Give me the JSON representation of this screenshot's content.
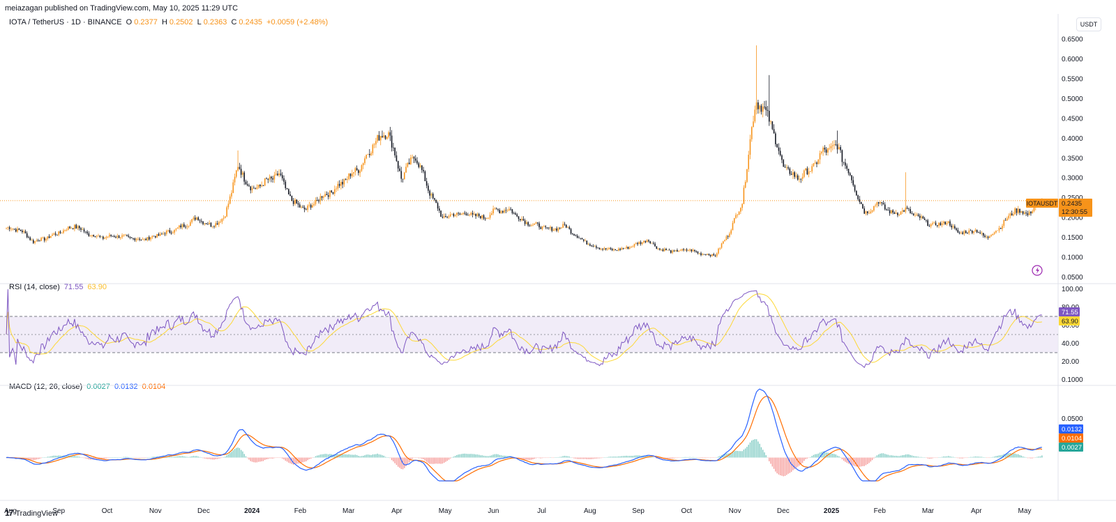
{
  "header": {
    "published": "meiazagan published on TradingView.com, May 10, 2025 11:29 UTC"
  },
  "price_legend": {
    "symbol": "IOTA / TetherUS · 1D · BINANCE",
    "o_label": "O",
    "o_value": "0.2377",
    "h_label": "H",
    "h_value": "0.2502",
    "l_label": "L",
    "l_value": "0.2363",
    "c_label": "C",
    "c_value": "0.2435",
    "change": "+0.0059 (+2.48%)"
  },
  "currency_button": "USDT",
  "price_tag": {
    "symbol": "IOTAUSDT",
    "price": "0.2435",
    "countdown": "12:30:55"
  },
  "rsi_legend": {
    "name": "RSI (14, close)",
    "rsi_value": "71.55",
    "ma_value": "63.90"
  },
  "macd_legend": {
    "name": "MACD (12, 26, close)",
    "hist_value": "0.0027",
    "macd_value": "0.0132",
    "signal_value": "0.0104"
  },
  "footer": {
    "brand": "TradingView",
    "logo_glyph": "17"
  },
  "colors": {
    "candle_up": "#f7931a",
    "candle_down": "#131722",
    "rsi_line": "#7e57c2",
    "rsi_ma": "#fdd835",
    "rsi_band": "#ede7f6",
    "macd_line": "#2962ff",
    "signal_line": "#ff6d00",
    "hist_pos": "#26a69a",
    "hist_neg": "#ef5350",
    "last_price": "#f7931a"
  },
  "chart_data": [
    {
      "type": "candlestick",
      "name": "IOTAUSDT",
      "x_ticks": [
        "Aug",
        "Sep",
        "Oct",
        "Nov",
        "Dec",
        "2024",
        "Feb",
        "Mar",
        "Apr",
        "May",
        "Jun",
        "Jul",
        "Aug",
        "Sep",
        "Oct",
        "Nov",
        "Dec",
        "2025",
        "Feb",
        "Mar",
        "Apr",
        "May"
      ],
      "x_ticks_bold": [
        "2024",
        "2025"
      ],
      "y_ticks": [
        "0.6500",
        "0.6000",
        "0.5500",
        "0.5000",
        "0.4500",
        "0.4000",
        "0.3500",
        "0.3000",
        "0.2500",
        "0.2000",
        "0.1500",
        "0.1000",
        "0.0500"
      ],
      "y_tick_values": [
        0.65,
        0.6,
        0.55,
        0.5,
        0.45,
        0.4,
        0.35,
        0.3,
        0.25,
        0.2,
        0.15,
        0.1,
        0.05
      ],
      "ylim": [
        0.05,
        0.665
      ],
      "last_price": 0.2435,
      "closes": [
        0.175,
        0.17,
        0.14,
        0.15,
        0.165,
        0.18,
        0.16,
        0.15,
        0.155,
        0.15,
        0.145,
        0.155,
        0.165,
        0.18,
        0.2,
        0.18,
        0.2,
        0.33,
        0.27,
        0.29,
        0.31,
        0.24,
        0.22,
        0.25,
        0.27,
        0.3,
        0.33,
        0.39,
        0.42,
        0.3,
        0.36,
        0.27,
        0.2,
        0.21,
        0.21,
        0.2,
        0.22,
        0.22,
        0.19,
        0.18,
        0.17,
        0.18,
        0.15,
        0.13,
        0.12,
        0.12,
        0.13,
        0.145,
        0.12,
        0.115,
        0.12,
        0.11,
        0.105,
        0.16,
        0.24,
        0.5,
        0.45,
        0.33,
        0.3,
        0.32,
        0.37,
        0.38,
        0.3,
        0.21,
        0.24,
        0.21,
        0.22,
        0.2,
        0.18,
        0.19,
        0.16,
        0.17,
        0.15,
        0.18,
        0.22,
        0.21,
        0.2435
      ],
      "volatility_spikes": [
        [
          17,
          0.37
        ],
        [
          28,
          0.42
        ],
        [
          55,
          0.635
        ],
        [
          56,
          0.56
        ],
        [
          61,
          0.42
        ],
        [
          66,
          0.315
        ]
      ],
      "start_date": "2023-07-27",
      "end_date": "2025-05-10"
    },
    {
      "type": "line",
      "name": "RSI (14, close)",
      "y_ticks": [
        "100.00",
        "80.00",
        "60.00",
        "40.00",
        "20.00"
      ],
      "y_tick_values": [
        100,
        80,
        60,
        40,
        20
      ],
      "ylim": [
        0,
        100
      ],
      "bands": [
        30,
        70
      ],
      "midline": 50,
      "current_rsi": 71.55,
      "current_ma": 63.9
    },
    {
      "type": "line",
      "name": "MACD (12, 26, close)",
      "y_ticks": [
        "0.1000",
        "0.0500"
      ],
      "y_tick_values": [
        0.1,
        0.05
      ],
      "ylim": [
        -0.03,
        0.1
      ],
      "current_macd": 0.0132,
      "current_signal": 0.0104,
      "current_hist": 0.0027
    }
  ]
}
